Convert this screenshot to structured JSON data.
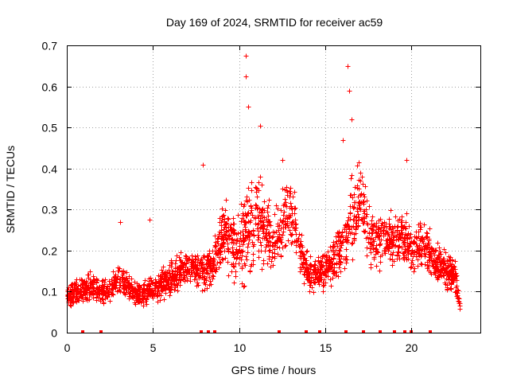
{
  "chart_data": {
    "type": "scatter",
    "title": "Day 169 of 2024, SRMTID for receiver ac59",
    "xlabel": "GPS time / hours",
    "ylabel": "SRMTID / TECUs",
    "xlim": [
      0,
      24
    ],
    "ylim": [
      0,
      0.7
    ],
    "xticks": [
      0,
      5,
      10,
      15,
      20
    ],
    "yticks": [
      0,
      0.1,
      0.2,
      0.3,
      0.4,
      0.5,
      0.6,
      0.7
    ],
    "xtick_labels": [
      "0",
      "5",
      "10",
      "15",
      "20"
    ],
    "ytick_labels": [
      "0",
      "0.1",
      "0.2",
      "0.3",
      "0.4",
      "0.5",
      "0.6",
      "0.7"
    ],
    "grid": true,
    "marker": "+",
    "color": "#ff0000",
    "series": [
      {
        "name": "SRMTID",
        "trend": {
          "x": [
            0,
            0.5,
            1,
            1.5,
            2,
            2.5,
            3,
            3.5,
            4,
            4.5,
            5,
            5.5,
            6,
            6.5,
            7,
            7.5,
            8,
            8.5,
            9,
            9.5,
            10,
            10.5,
            11,
            11.5,
            12,
            12.5,
            13,
            13.5,
            14,
            14.5,
            15,
            15.5,
            16,
            16.5,
            17,
            17.5,
            18,
            18.5,
            19,
            19.5,
            20,
            20.5,
            21,
            21.5,
            22,
            22.5,
            22.8
          ],
          "y": [
            0.09,
            0.1,
            0.11,
            0.11,
            0.1,
            0.11,
            0.13,
            0.12,
            0.09,
            0.1,
            0.1,
            0.12,
            0.13,
            0.15,
            0.16,
            0.16,
            0.15,
            0.17,
            0.25,
            0.22,
            0.2,
            0.25,
            0.28,
            0.24,
            0.22,
            0.26,
            0.3,
            0.2,
            0.15,
            0.14,
            0.16,
            0.18,
            0.2,
            0.28,
            0.32,
            0.25,
            0.22,
            0.24,
            0.22,
            0.24,
            0.2,
            0.22,
            0.2,
            0.17,
            0.15,
            0.14,
            0.06
          ],
          "spread": [
            0.03,
            0.04,
            0.04,
            0.04,
            0.035,
            0.04,
            0.05,
            0.04,
            0.03,
            0.04,
            0.04,
            0.05,
            0.05,
            0.05,
            0.05,
            0.05,
            0.05,
            0.06,
            0.09,
            0.09,
            0.12,
            0.15,
            0.14,
            0.12,
            0.1,
            0.1,
            0.1,
            0.08,
            0.05,
            0.05,
            0.06,
            0.07,
            0.08,
            0.12,
            0.1,
            0.09,
            0.08,
            0.07,
            0.07,
            0.08,
            0.07,
            0.07,
            0.07,
            0.06,
            0.06,
            0.05,
            0.02
          ]
        },
        "peaks": [
          {
            "x": 10.4,
            "y": 0.675
          },
          {
            "x": 10.4,
            "y": 0.625
          },
          {
            "x": 10.5,
            "y": 0.55
          },
          {
            "x": 11.2,
            "y": 0.505
          },
          {
            "x": 12.5,
            "y": 0.42
          },
          {
            "x": 16.3,
            "y": 0.65
          },
          {
            "x": 16.4,
            "y": 0.59
          },
          {
            "x": 16.5,
            "y": 0.52
          },
          {
            "x": 16.0,
            "y": 0.47
          },
          {
            "x": 19.7,
            "y": 0.42
          },
          {
            "x": 7.9,
            "y": 0.41
          },
          {
            "x": 3.1,
            "y": 0.27
          },
          {
            "x": 4.8,
            "y": 0.275
          }
        ],
        "zero_markers_x": [
          0.9,
          2.0,
          7.8,
          8.2,
          8.6,
          12.3,
          13.9,
          14.7,
          16.2,
          17.2,
          18.2,
          19.0,
          19.6,
          20.0,
          21.1
        ]
      }
    ]
  }
}
